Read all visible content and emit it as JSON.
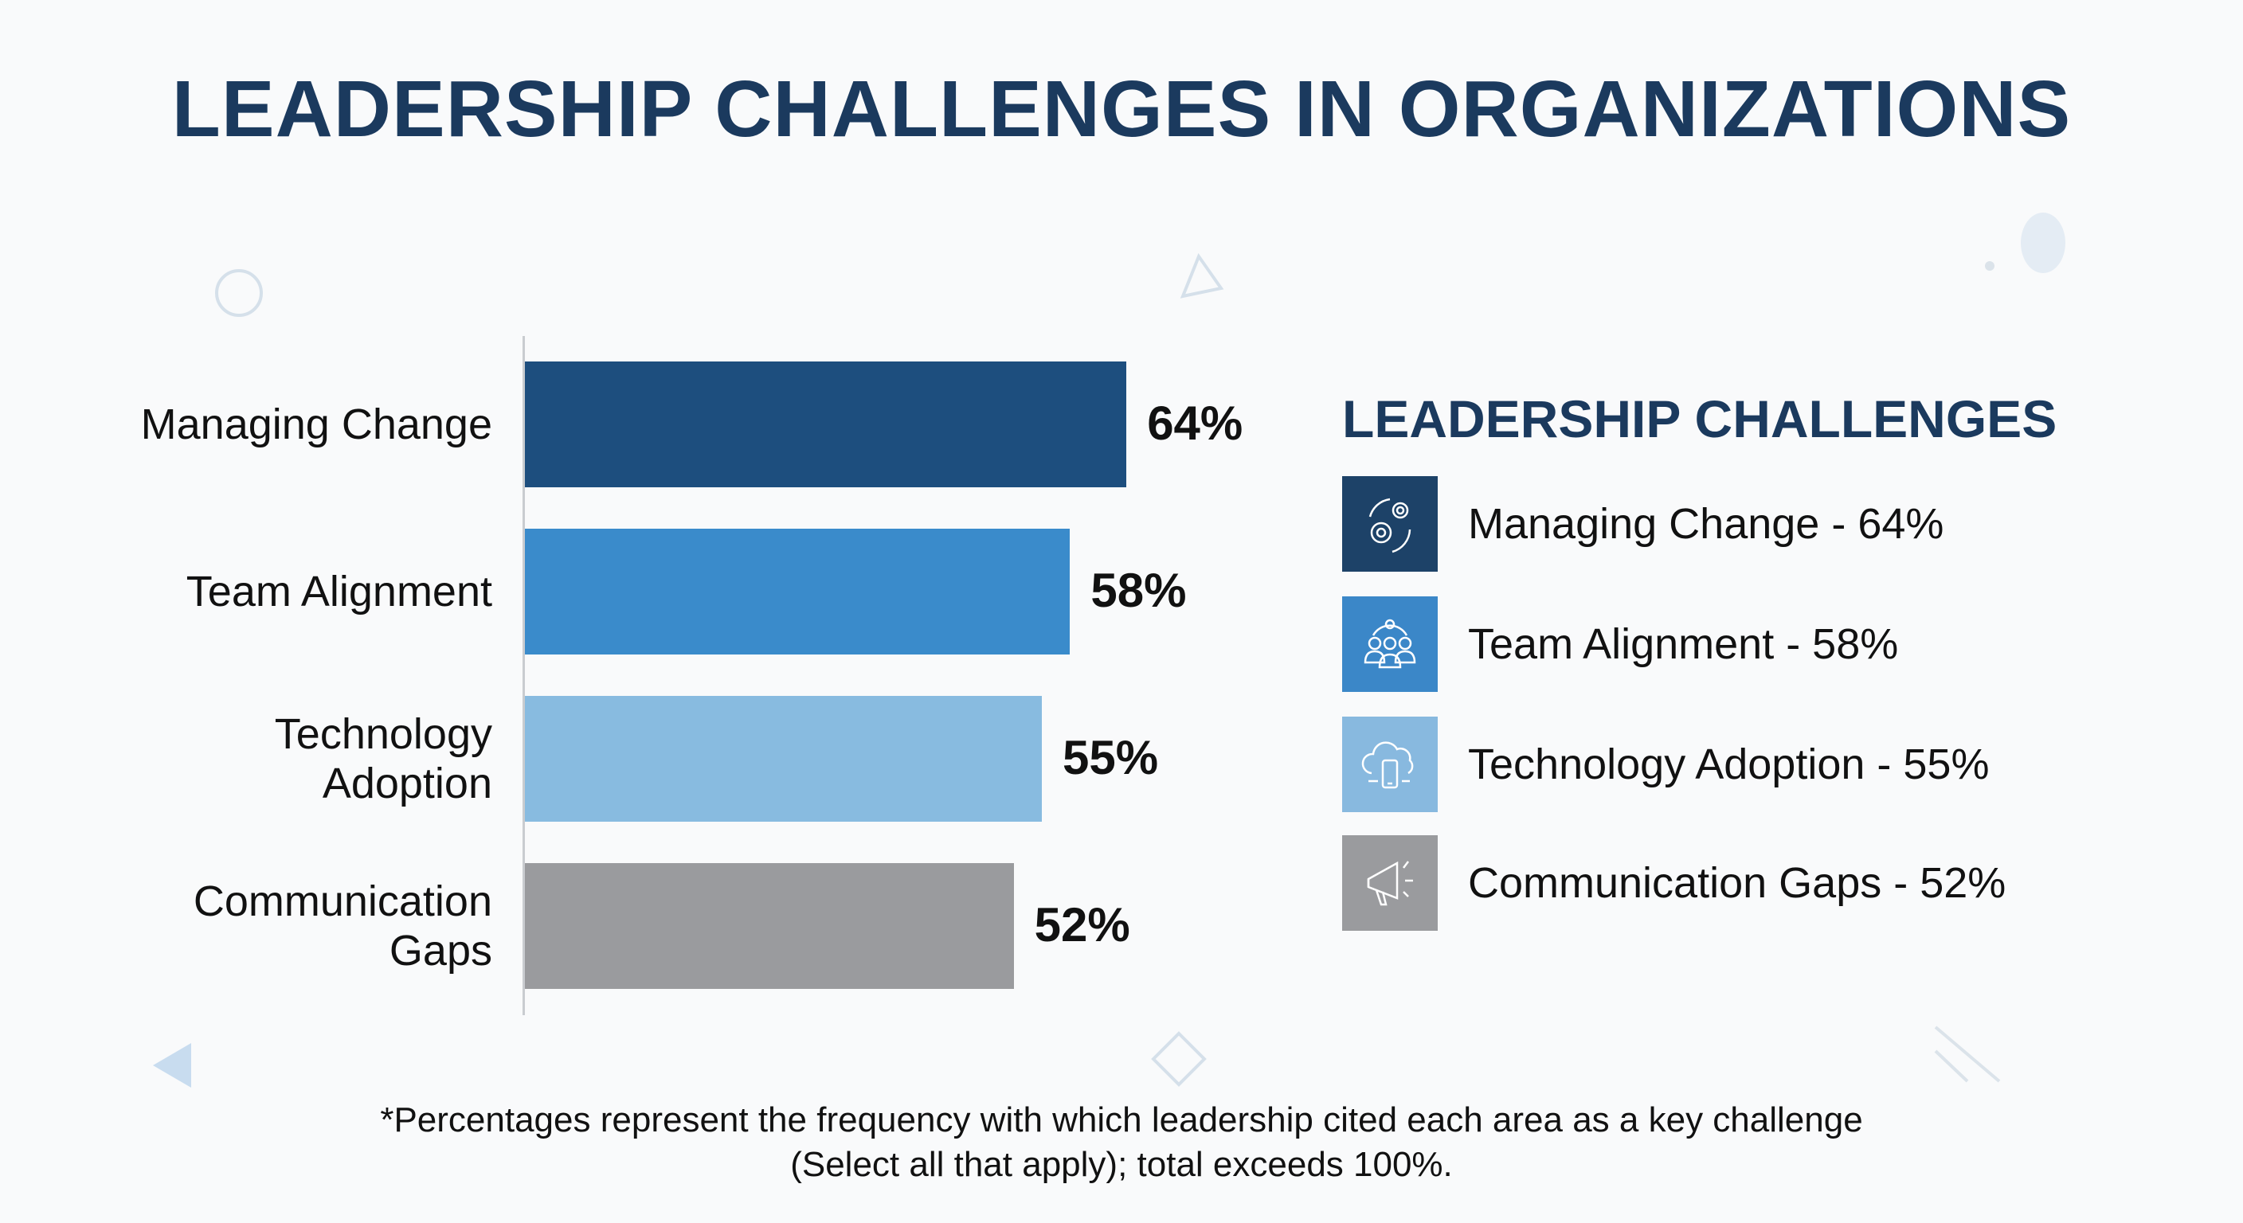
{
  "title": "LEADERSHIP CHALLENGES IN ORGANIZATIONS",
  "chart_data": {
    "type": "bar",
    "orientation": "horizontal",
    "categories": [
      "Managing Change",
      "Team Alignment",
      "Technology Adoption",
      "Communication Gaps"
    ],
    "category_lines": [
      [
        "Managing Change"
      ],
      [
        "Team Alignment"
      ],
      [
        "Technology",
        "Adoption"
      ],
      [
        "Communication",
        "Gaps"
      ]
    ],
    "values": [
      64,
      58,
      55,
      52
    ],
    "value_labels": [
      "64%",
      "58%",
      "55%",
      "52%"
    ],
    "colors": [
      "#1d4e7e",
      "#3a8bcb",
      "#88bbe0",
      "#9a9b9e"
    ],
    "unit": "%",
    "grid": false,
    "legend_placement": "right"
  },
  "legend": {
    "title": "LEADERSHIP CHALLENGES",
    "items": [
      {
        "label": "Managing Change - 64%",
        "icon": "gears-cycle-icon",
        "color": "#1d4268"
      },
      {
        "label": "Team Alignment - 58%",
        "icon": "team-group-icon",
        "color": "#3b87c8"
      },
      {
        "label": "Technology Adoption - 55%",
        "icon": "cloud-phone-icon",
        "color": "#88b9df"
      },
      {
        "label": "Communication Gaps - 52%",
        "icon": "megaphone-icon",
        "color": "#9a9b9e"
      }
    ]
  },
  "footnote": {
    "line1": "*Percentages represent the frequency with which leadership cited each area as a key challenge",
    "line2": "(Select all that apply); total exceeds 100%."
  }
}
